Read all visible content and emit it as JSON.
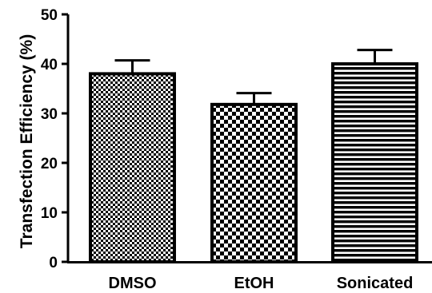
{
  "chart_data": {
    "type": "bar",
    "title": "",
    "xlabel": "",
    "ylabel": "Transfection Efficiency (%)",
    "ylim": [
      0,
      50
    ],
    "yticks": [
      0,
      10,
      20,
      30,
      40,
      50
    ],
    "categories": [
      "DMSO",
      "EtOH",
      "Sonicated"
    ],
    "values": [
      38,
      31.8,
      40
    ],
    "error": [
      2.7,
      2.3,
      2.8
    ],
    "error_style": "upper cap only",
    "patterns": [
      "fine checkerboard",
      "coarse checkerboard",
      "horizontal stripes"
    ],
    "grid": false,
    "colors": {
      "bar_outline": "#000000",
      "pattern": "#000000",
      "background": "#ffffff"
    }
  }
}
